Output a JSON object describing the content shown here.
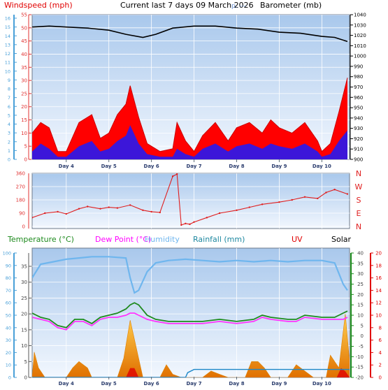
{
  "header": {
    "title": "Current last 7 days 09 March 2026",
    "windspeed_label": "Windspeed (mph)",
    "barometer_label": "Barometer (mb)",
    "overlap_fragment": "p. ---"
  },
  "colors": {
    "panel_top": "#a9c8ec",
    "panel_bottom": "#f2f7fe",
    "grid": "#ffffff",
    "gust": "#ff0000",
    "wind": "#1a1aff",
    "barometer": "#000000",
    "wind_dir": "#e01e1e",
    "humidity": "#6fb6ee",
    "temperature": "#1e8a1e",
    "dew_point": "#ff33ff",
    "rainfall": "#1e88c8",
    "uv": "#e00000",
    "solar": "#f5a010",
    "left_axis": "#4aa0d8",
    "right_axis_uv": "#e00000",
    "right_axis_temp": "#1a8a1a"
  },
  "chart_data": [
    {
      "type": "line",
      "title": "Current last 7 days 09 March 2026",
      "categories": [
        "Day 4",
        "Day 5",
        "Day 6",
        "Day 7",
        "Day 8",
        "Day 9",
        "Day 10"
      ],
      "xlim": [
        3.2,
        10.65
      ],
      "left_axis": {
        "label": "Windspeed (mph)",
        "ylim": [
          0,
          55
        ],
        "ticks": [
          0,
          5,
          10,
          15,
          20,
          25,
          30,
          35,
          40,
          45,
          50,
          55
        ]
      },
      "outer_left_ticks": [
        0,
        1,
        2,
        3,
        4,
        5,
        6,
        7,
        8,
        9,
        10,
        11,
        12,
        13,
        14,
        15,
        16
      ],
      "right_axis": {
        "label": "Barometer (mb)",
        "ylim": [
          900,
          1040
        ],
        "ticks": [
          900,
          910,
          920,
          930,
          940,
          950,
          960,
          970,
          980,
          990,
          1000,
          1010,
          1020,
          1030,
          1040
        ]
      },
      "series": [
        {
          "name": "Barometer (mb)",
          "axis": "right",
          "x": [
            3.2,
            3.6,
            4.0,
            4.5,
            5.0,
            5.4,
            5.8,
            6.1,
            6.5,
            7.0,
            7.5,
            8.0,
            8.5,
            9.0,
            9.5,
            10.0,
            10.3,
            10.6
          ],
          "values": [
            1028,
            1029,
            1028,
            1027,
            1025,
            1021,
            1018,
            1021,
            1027,
            1029,
            1029,
            1027,
            1026,
            1023,
            1022,
            1019,
            1018,
            1014
          ]
        },
        {
          "name": "Windspeed (mph)",
          "axis": "left",
          "x": [
            3.2,
            3.4,
            3.6,
            3.8,
            4.0,
            4.3,
            4.6,
            4.8,
            5.0,
            5.2,
            5.4,
            5.5,
            5.7,
            5.9,
            6.2,
            6.5,
            6.6,
            6.8,
            7.0,
            7.2,
            7.5,
            7.8,
            8.0,
            8.3,
            8.6,
            8.8,
            9.0,
            9.3,
            9.6,
            9.9,
            10.0,
            10.2,
            10.4,
            10.6
          ],
          "values": [
            3,
            6,
            4,
            1,
            1,
            5,
            7,
            3,
            4,
            7,
            9,
            13,
            6,
            2,
            1,
            1,
            4,
            2,
            1,
            4,
            6,
            3,
            5,
            6,
            4,
            6,
            5,
            4,
            6,
            3,
            1,
            2,
            7,
            11
          ]
        },
        {
          "name": "Gust (mph)",
          "axis": "left",
          "x": [
            3.2,
            3.4,
            3.6,
            3.8,
            4.0,
            4.3,
            4.6,
            4.8,
            5.0,
            5.2,
            5.4,
            5.5,
            5.7,
            5.9,
            6.2,
            6.5,
            6.6,
            6.8,
            7.0,
            7.2,
            7.5,
            7.8,
            8.0,
            8.3,
            8.6,
            8.8,
            9.0,
            9.3,
            9.6,
            9.9,
            10.0,
            10.2,
            10.4,
            10.6
          ],
          "values": [
            10,
            14,
            12,
            3,
            3,
            14,
            17,
            8,
            10,
            17,
            21,
            28,
            16,
            6,
            3,
            4,
            14,
            7,
            3,
            9,
            14,
            7,
            12,
            14,
            10,
            15,
            12,
            10,
            14,
            7,
            3,
            6,
            18,
            31
          ]
        }
      ]
    },
    {
      "type": "scatter",
      "title": "",
      "categories": [
        "Day 4",
        "Day 5",
        "Day 6",
        "Day 7",
        "Day 8",
        "Day 9",
        "Day 10"
      ],
      "xlim": [
        3.2,
        10.65
      ],
      "left_axis": {
        "ylim": [
          0,
          360
        ],
        "ticks": [
          0,
          90,
          180,
          270,
          360
        ]
      },
      "right_labels": [
        "N",
        "W",
        "S",
        "E",
        "N"
      ],
      "series": [
        {
          "name": "Wind direction",
          "x": [
            3.2,
            3.5,
            3.8,
            4.0,
            4.3,
            4.5,
            4.8,
            5.0,
            5.2,
            5.5,
            5.8,
            6.0,
            6.2,
            6.5,
            6.6,
            6.7,
            6.8,
            6.9,
            7.0,
            7.3,
            7.6,
            8.0,
            8.3,
            8.6,
            9.0,
            9.3,
            9.6,
            9.9,
            10.1,
            10.3,
            10.6
          ],
          "values": [
            60,
            90,
            100,
            85,
            120,
            135,
            120,
            130,
            125,
            145,
            110,
            100,
            95,
            340,
            355,
            10,
            20,
            15,
            30,
            60,
            90,
            110,
            130,
            150,
            165,
            180,
            200,
            190,
            230,
            250,
            220
          ]
        }
      ]
    },
    {
      "type": "line",
      "title": "",
      "categories": [
        "Day 4",
        "Day 5",
        "Day 6",
        "Day 7",
        "Day 8",
        "Day 9",
        "Day 10"
      ],
      "xlim": [
        3.2,
        10.65
      ],
      "legend": [
        "Temperature (°C)",
        "Dew Point (°C)",
        "Humidity",
        "Rainfall (mm)",
        "UV",
        "Solar"
      ],
      "left_axis_inner": {
        "ylim": [
          0,
          35
        ],
        "ticks": [
          0,
          5,
          10,
          15,
          20,
          25,
          30,
          35
        ]
      },
      "left_axis_outer": {
        "ylim": [
          0,
          100
        ],
        "ticks": [
          0,
          10,
          20,
          30,
          40,
          50,
          60,
          70,
          80,
          90,
          100
        ]
      },
      "right_axis_temp": {
        "ylim": [
          -20,
          40
        ],
        "ticks": [
          -20,
          -15,
          -10,
          -5,
          0,
          5,
          10,
          15,
          20,
          25,
          30,
          35,
          40
        ]
      },
      "right_axis_uv": {
        "ylim": [
          0,
          20
        ],
        "ticks": [
          0,
          2,
          4,
          6,
          8,
          10,
          12,
          14,
          16,
          18,
          20
        ]
      },
      "series": [
        {
          "name": "Humidity",
          "axis": "outer_left",
          "x": [
            3.2,
            3.4,
            3.7,
            4.0,
            4.3,
            4.6,
            5.0,
            5.4,
            5.5,
            5.6,
            5.7,
            5.9,
            6.1,
            6.4,
            6.8,
            7.2,
            7.6,
            8.0,
            8.4,
            8.8,
            9.2,
            9.6,
            10.0,
            10.3,
            10.5,
            10.6
          ],
          "values": [
            80,
            91,
            93,
            95,
            96,
            97,
            97,
            96,
            80,
            68,
            70,
            85,
            92,
            94,
            95,
            94,
            93,
            94,
            93,
            94,
            93,
            94,
            94,
            92,
            75,
            70
          ]
        },
        {
          "name": "Temperature (°C)",
          "axis": "right_temp",
          "x": [
            3.2,
            3.4,
            3.6,
            3.8,
            4.0,
            4.2,
            4.4,
            4.6,
            4.8,
            5.0,
            5.2,
            5.4,
            5.5,
            5.6,
            5.7,
            5.9,
            6.1,
            6.4,
            6.8,
            7.2,
            7.6,
            8.0,
            8.4,
            8.6,
            8.8,
            9.2,
            9.4,
            9.6,
            10.0,
            10.3,
            10.5,
            10.6
          ],
          "values": [
            11,
            9,
            8,
            5,
            4,
            8,
            8,
            6,
            9,
            10,
            11,
            13,
            15,
            16,
            15,
            10,
            8,
            7,
            7,
            7,
            8,
            7,
            8,
            10,
            9,
            8,
            8,
            10,
            9,
            9,
            11,
            12
          ]
        },
        {
          "name": "Dew Point (°C)",
          "axis": "right_temp",
          "x": [
            3.2,
            3.4,
            3.6,
            3.8,
            4.0,
            4.2,
            4.4,
            4.6,
            4.8,
            5.0,
            5.2,
            5.4,
            5.5,
            5.6,
            5.7,
            5.9,
            6.1,
            6.4,
            6.8,
            7.2,
            7.6,
            8.0,
            8.4,
            8.6,
            8.8,
            9.2,
            9.4,
            9.6,
            10.0,
            10.3,
            10.5,
            10.6
          ],
          "values": [
            9,
            8,
            7,
            4,
            3,
            7,
            7,
            5,
            8,
            9,
            9,
            10,
            11,
            11,
            10,
            8,
            7,
            6,
            6,
            6,
            7,
            6,
            7,
            9,
            8,
            7,
            7,
            9,
            8,
            8,
            8,
            9
          ]
        },
        {
          "name": "Solar",
          "axis": "inner_left",
          "x": [
            3.2,
            3.25,
            3.35,
            3.5,
            3.8,
            4.0,
            4.15,
            4.3,
            4.5,
            4.6,
            4.9,
            5.2,
            5.35,
            5.5,
            5.65,
            5.8,
            6.0,
            6.2,
            6.35,
            6.5,
            6.7,
            7.2,
            7.4,
            7.6,
            7.8,
            8.2,
            8.35,
            8.5,
            8.65,
            8.8,
            9.2,
            9.4,
            9.6,
            9.8,
            10.1,
            10.2,
            10.4,
            10.55,
            10.65
          ],
          "values": [
            0,
            8,
            3,
            0,
            0,
            0,
            3,
            5,
            3,
            0,
            0,
            0,
            6,
            18,
            9,
            0,
            0,
            0,
            4,
            1,
            0,
            0,
            2,
            1,
            0,
            0,
            5,
            5,
            3,
            0,
            0,
            4,
            2,
            0,
            0,
            7,
            3,
            20,
            5
          ]
        },
        {
          "name": "UV",
          "axis": "right_uv",
          "x": [
            3.2,
            5.4,
            5.5,
            5.6,
            5.7,
            10.35,
            10.45,
            10.55,
            10.65
          ],
          "values": [
            0,
            0,
            1.5,
            1.5,
            0,
            0,
            1.5,
            1.0,
            0
          ]
        },
        {
          "name": "Rainfall (mm)",
          "axis": "inner_left",
          "x": [
            3.2,
            6.8,
            6.85,
            7.0,
            7.1,
            10.65
          ],
          "values": [
            0,
            0,
            1.5,
            2.5,
            2.5,
            2.5
          ]
        }
      ]
    }
  ]
}
